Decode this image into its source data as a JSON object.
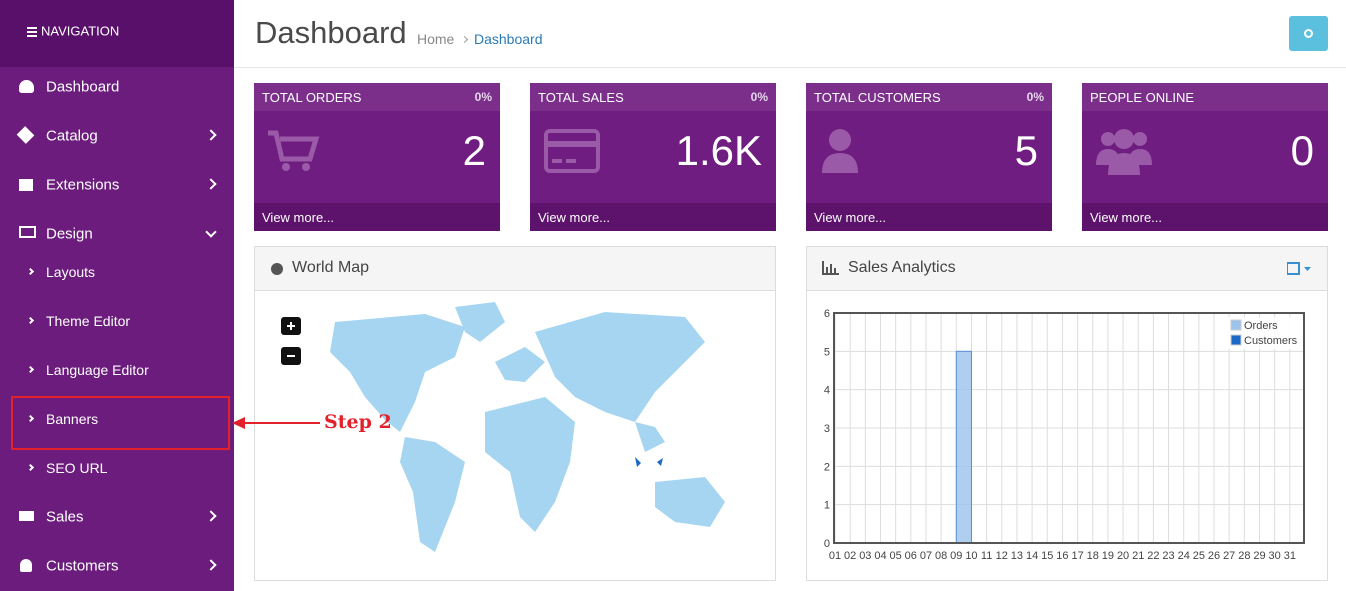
{
  "sidebar": {
    "header": "NAVIGATION",
    "items": [
      "Dashboard",
      "Catalog",
      "Extensions",
      "Design",
      "Layouts",
      "Theme Editor",
      "Language Editor",
      "Banners",
      "SEO URL",
      "Sales",
      "Customers"
    ]
  },
  "header": {
    "title": "Dashboard",
    "breadcrumb": [
      "Home",
      "Dashboard"
    ]
  },
  "tiles": [
    {
      "title": "TOTAL ORDERS",
      "change": "0%",
      "value": "2",
      "link": "View more..."
    },
    {
      "title": "TOTAL SALES",
      "change": "0%",
      "value": "1.6K",
      "link": "View more..."
    },
    {
      "title": "TOTAL CUSTOMERS",
      "change": "0%",
      "value": "5",
      "link": "View more..."
    },
    {
      "title": "PEOPLE ONLINE",
      "value": "0",
      "link": "View more..."
    }
  ],
  "annotation": "Step 2",
  "world_map": {
    "title": "World Map"
  },
  "chart_data": {
    "type": "bar",
    "title": "Sales Analytics",
    "categories": [
      "01",
      "02",
      "03",
      "04",
      "05",
      "06",
      "07",
      "08",
      "09",
      "10",
      "11",
      "12",
      "13",
      "14",
      "15",
      "16",
      "17",
      "18",
      "19",
      "20",
      "21",
      "22",
      "23",
      "24",
      "25",
      "26",
      "27",
      "28",
      "29",
      "30",
      "31"
    ],
    "series": [
      {
        "name": "Orders",
        "color": "#9cc3ec",
        "values": [
          0,
          0,
          0,
          0,
          0,
          0,
          0,
          0,
          5,
          0,
          0,
          0,
          0,
          0,
          0,
          0,
          0,
          0,
          0,
          0,
          0,
          0,
          0,
          0,
          0,
          0,
          0,
          0,
          0,
          0,
          0
        ]
      },
      {
        "name": "Customers",
        "color": "#1c68c7",
        "values": [
          0,
          0,
          0,
          0,
          0,
          0,
          0,
          0,
          0,
          0,
          0,
          0,
          0,
          0,
          0,
          0,
          0,
          0,
          0,
          0,
          0,
          0,
          0,
          0,
          0,
          0,
          0,
          0,
          0,
          0,
          0
        ]
      }
    ],
    "ylim": [
      0,
      6
    ],
    "yticks": [
      0,
      1,
      2,
      3,
      4,
      5,
      6
    ],
    "grid": true,
    "legend": "top-right"
  }
}
